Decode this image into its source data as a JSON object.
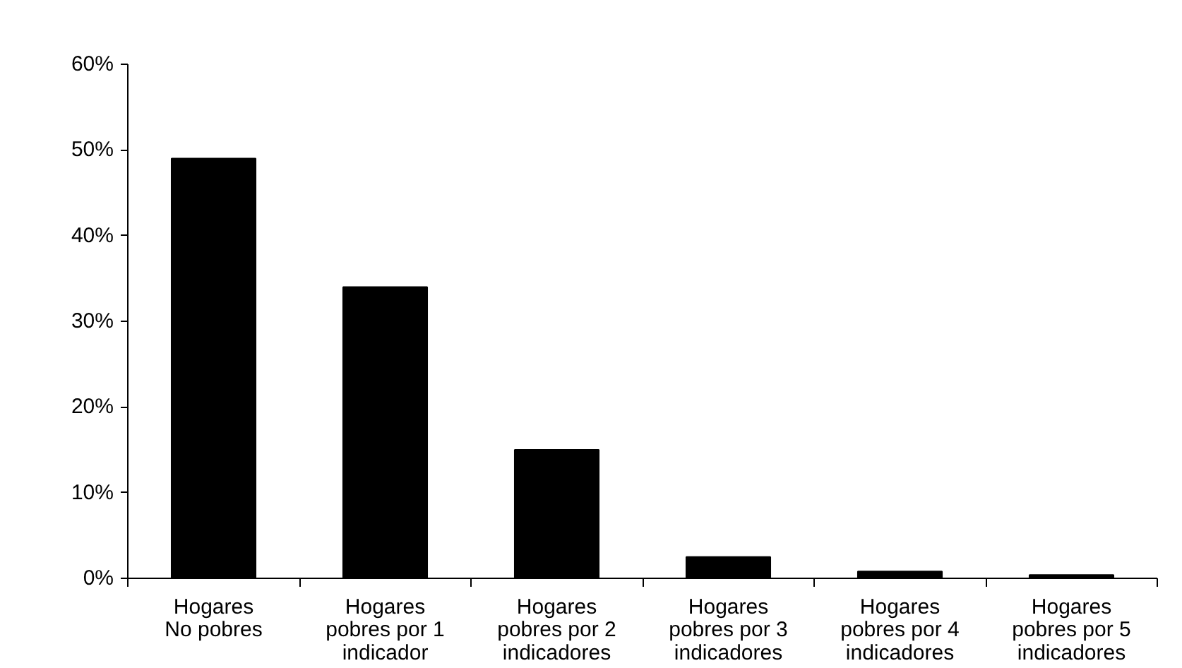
{
  "chart_data": {
    "type": "bar",
    "categories": [
      "Hogares\nNo pobres",
      "Hogares\npobres por 1\nindicador",
      "Hogares\npobres por 2\nindicadores",
      "Hogares\npobres por 3\nindicadores",
      "Hogares\npobres por 4\nindicadores",
      "Hogares\npobres por 5\nindicadores"
    ],
    "values": [
      49,
      34,
      15,
      2.5,
      0.8,
      0.4
    ],
    "color": "#000000",
    "ylim": [
      0,
      60
    ],
    "yticks": [
      {
        "value": 0,
        "label": "0%"
      },
      {
        "value": 10,
        "label": "10%"
      },
      {
        "value": 20,
        "label": "20%"
      },
      {
        "value": 30,
        "label": "30%"
      },
      {
        "value": 40,
        "label": "40%"
      },
      {
        "value": 50,
        "label": "50%"
      },
      {
        "value": 60,
        "label": "60%"
      }
    ],
    "grid": false
  }
}
